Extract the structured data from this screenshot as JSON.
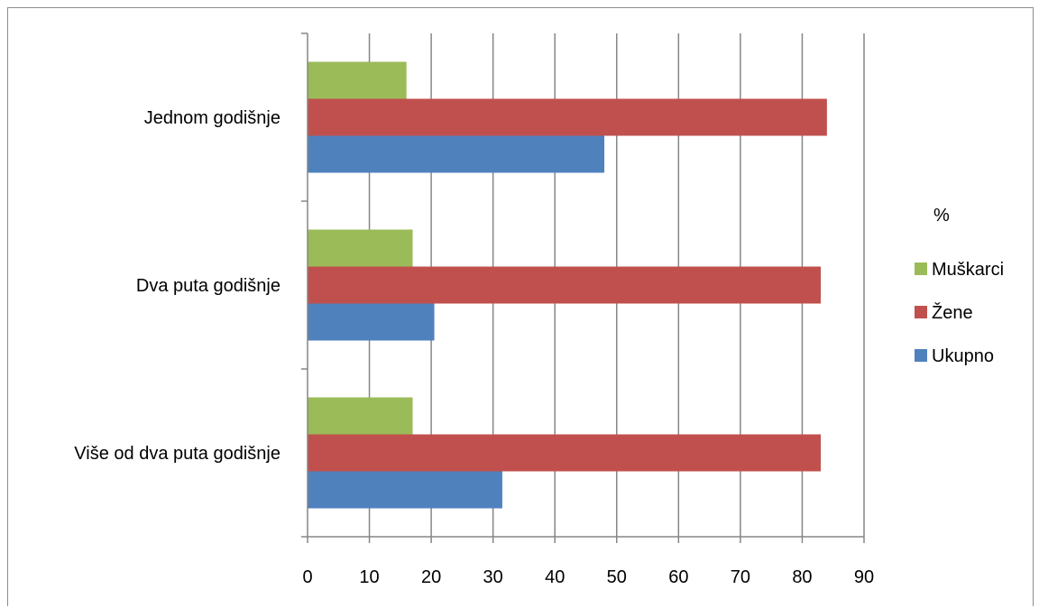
{
  "chart_data": {
    "type": "bar",
    "orientation": "horizontal",
    "categories": [
      "Jednom godišnje",
      "Dva puta godišnje",
      "Više od dva puta godišnje"
    ],
    "series": [
      {
        "name": "Muškarci",
        "color": "#9bbb59",
        "values": [
          16,
          17,
          17
        ]
      },
      {
        "name": "Žene",
        "color": "#c0504d",
        "values": [
          84,
          83,
          83
        ]
      },
      {
        "name": "Ukupno",
        "color": "#4f81bd",
        "values": [
          48,
          20.5,
          31.5
        ]
      }
    ],
    "xlim": [
      0,
      90
    ],
    "xticks": [
      "0",
      "10",
      "20",
      "30",
      "40",
      "50",
      "60",
      "70",
      "80",
      "90"
    ],
    "grid": true,
    "legend": {
      "title": "%",
      "position": "right"
    },
    "gridline_color": "#868686",
    "axis_color": "#868686"
  }
}
